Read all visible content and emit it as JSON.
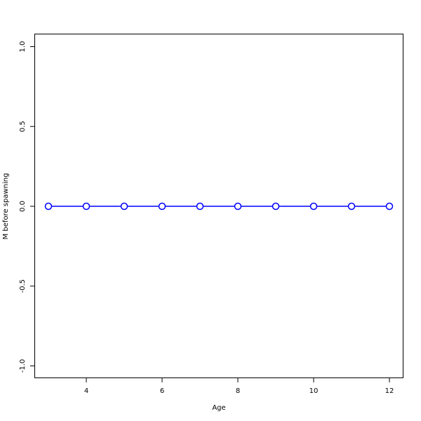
{
  "chart_data": {
    "type": "line",
    "title": "",
    "xlabel": "Age",
    "ylabel": "M before spawning",
    "x": [
      3,
      4,
      5,
      6,
      7,
      8,
      9,
      10,
      11,
      12
    ],
    "series": [
      {
        "values": [
          0,
          0,
          0,
          0,
          0,
          0,
          0,
          0,
          0,
          0
        ],
        "color": "#0000ff",
        "marker": "open-circle"
      }
    ],
    "xticks": [
      4,
      6,
      8,
      10,
      12
    ],
    "xtick_labels": [
      "4",
      "6",
      "8",
      "10",
      "12"
    ],
    "yticks": [
      -1.0,
      -0.5,
      0.0,
      0.5,
      1.0
    ],
    "ytick_labels": [
      "-1.0",
      "-0.5",
      "0.0",
      "0.5",
      "1.0"
    ],
    "xlim": [
      2.63,
      12.37
    ],
    "ylim": [
      -1.08,
      1.08
    ],
    "grid": false,
    "legend": "none"
  }
}
